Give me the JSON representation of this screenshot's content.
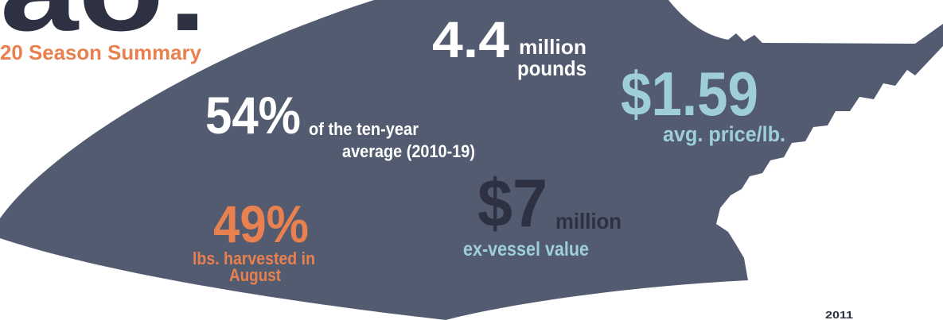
{
  "header": {
    "title": "ao:",
    "subtitle": "20 Season Summary"
  },
  "stats": [
    {
      "value": "4.4",
      "unit": [
        "million",
        "pounds"
      ]
    },
    {
      "value": "$1.59",
      "unit": [
        "avg. price/lb."
      ]
    },
    {
      "value": "54%",
      "unit": [
        "of the ten-year",
        "average (2010-19)"
      ]
    },
    {
      "value": "$7",
      "unit": [
        "million",
        "ex-vessel value"
      ]
    },
    {
      "value": "49%",
      "unit": [
        "lbs. harvested in",
        "August"
      ]
    }
  ],
  "footer": {
    "year": "2011"
  }
}
